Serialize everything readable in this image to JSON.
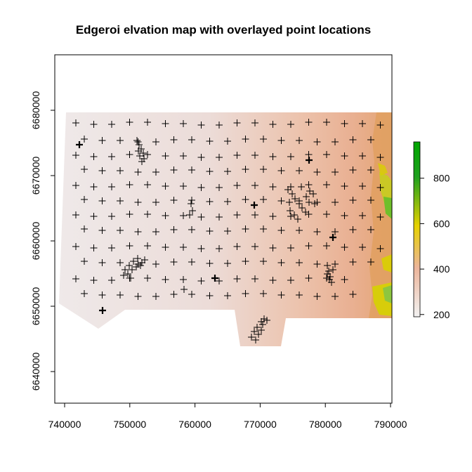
{
  "title": "Edgeroi elvation map with overlayed point locations",
  "x_ticks": [
    "740000",
    "750000",
    "760000",
    "770000",
    "780000",
    "790000"
  ],
  "y_ticks": [
    "6640000",
    "6650000",
    "6660000",
    "6670000",
    "6680000"
  ],
  "legend": {
    "labels": [
      "200",
      "400",
      "600",
      "800"
    ],
    "colors": [
      "#f2f2f2",
      "#ecb59b",
      "#e6d100",
      "#1fa11f",
      "#00a600"
    ]
  },
  "chart_data": {
    "type": "map",
    "title": "Edgeroi elvation map with overlayed point locations",
    "xlim": [
      738500,
      790500
    ],
    "ylim": [
      6635000,
      6688000
    ],
    "x_tick_values": [
      740000,
      750000,
      760000,
      770000,
      780000,
      790000
    ],
    "y_tick_values": [
      6640000,
      6650000,
      6660000,
      6670000,
      6680000
    ],
    "raster_extent": {
      "xmin": 739000,
      "xmax": 790500,
      "ymin": 6644000,
      "ymax": 6680000
    },
    "elevation_range": [
      190,
      960
    ],
    "legend_ticks": [
      200,
      400,
      600,
      800
    ],
    "point_marker": "+",
    "grid": false,
    "legend_position": "right"
  }
}
